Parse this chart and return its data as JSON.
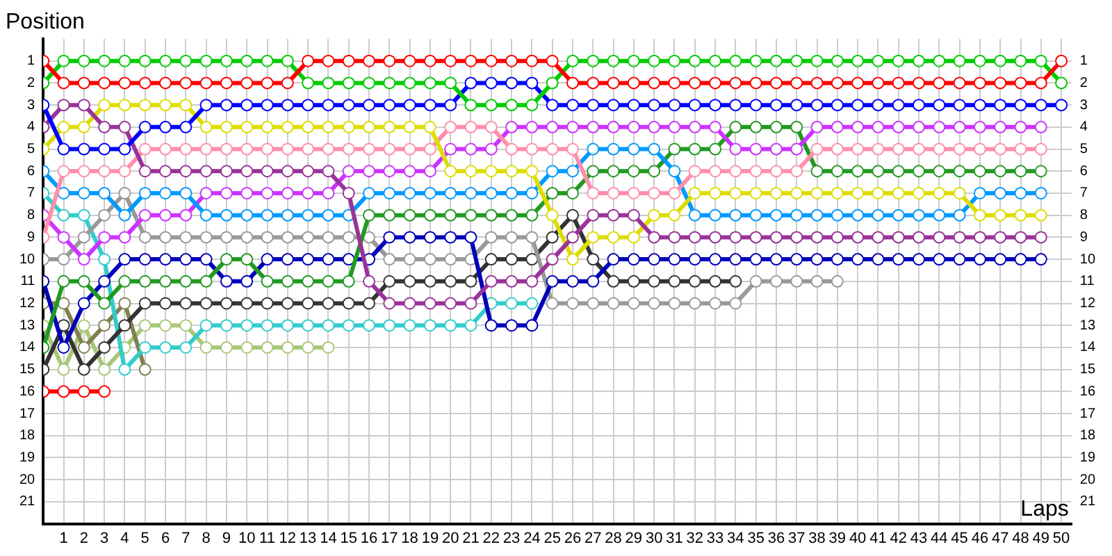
{
  "chart_data": {
    "type": "line",
    "xlabel": "Laps",
    "ylabel": "Position",
    "grid": true,
    "legend": false,
    "marker": "circle",
    "line_style": "solid",
    "x": [
      0,
      1,
      2,
      3,
      4,
      5,
      6,
      7,
      8,
      9,
      10,
      11,
      12,
      13,
      14,
      15,
      16,
      17,
      18,
      19,
      20,
      21,
      22,
      23,
      24,
      25,
      26,
      27,
      28,
      29,
      30,
      31,
      32,
      33,
      34,
      35,
      36,
      37,
      38,
      39,
      40,
      41,
      42,
      43,
      44,
      45,
      46,
      47,
      48,
      49,
      50
    ],
    "xlim": [
      0,
      50.5
    ],
    "xticks": [
      1,
      2,
      3,
      4,
      5,
      6,
      7,
      8,
      9,
      10,
      11,
      12,
      13,
      14,
      15,
      16,
      17,
      18,
      19,
      20,
      21,
      22,
      23,
      24,
      25,
      26,
      27,
      28,
      29,
      30,
      31,
      32,
      33,
      34,
      35,
      36,
      37,
      38,
      39,
      40,
      41,
      42,
      43,
      44,
      45,
      46,
      47,
      48,
      49,
      50
    ],
    "ylim": [
      22,
      0
    ],
    "yticks": [
      1,
      2,
      3,
      4,
      5,
      6,
      7,
      8,
      9,
      10,
      11,
      12,
      13,
      14,
      15,
      16,
      17,
      18,
      19,
      20,
      21
    ],
    "y2lim": [
      22,
      0
    ],
    "y2ticks": [
      1,
      2,
      3,
      4,
      5,
      6,
      7,
      8,
      9,
      10,
      11,
      12,
      13,
      14,
      15,
      16,
      17,
      18,
      19,
      20,
      21
    ],
    "series": [
      {
        "color": "#ff0000",
        "values": [
          1,
          2,
          2,
          2,
          2,
          2,
          2,
          2,
          2,
          2,
          2,
          2,
          2,
          1,
          1,
          1,
          1,
          1,
          1,
          1,
          1,
          1,
          1,
          1,
          1,
          1,
          2,
          2,
          2,
          2,
          2,
          2,
          2,
          2,
          2,
          2,
          2,
          2,
          2,
          2,
          2,
          2,
          2,
          2,
          2,
          2,
          2,
          2,
          2,
          2,
          1
        ]
      },
      {
        "color": "#00cc00",
        "values": [
          2,
          1,
          1,
          1,
          1,
          1,
          1,
          1,
          1,
          1,
          1,
          1,
          1,
          2,
          2,
          2,
          2,
          2,
          2,
          2,
          2,
          3,
          3,
          3,
          3,
          2,
          1,
          1,
          1,
          1,
          1,
          1,
          1,
          1,
          1,
          1,
          1,
          1,
          1,
          1,
          1,
          1,
          1,
          1,
          1,
          1,
          1,
          1,
          1,
          1,
          2
        ]
      },
      {
        "color": "#0000ff",
        "values": [
          3,
          5,
          5,
          5,
          5,
          4,
          4,
          4,
          3,
          3,
          3,
          3,
          3,
          3,
          3,
          3,
          3,
          3,
          3,
          3,
          3,
          2,
          2,
          2,
          2,
          3,
          3,
          3,
          3,
          3,
          3,
          3,
          3,
          3,
          3,
          3,
          3,
          3,
          3,
          3,
          3,
          3,
          3,
          3,
          3,
          3,
          3,
          3,
          3,
          3,
          3
        ]
      },
      {
        "color": "#993399",
        "values": [
          4,
          3,
          3,
          4,
          4,
          6,
          6,
          6,
          6,
          6,
          6,
          6,
          6,
          6,
          6,
          7,
          11,
          12,
          12,
          12,
          12,
          12,
          11,
          11,
          11,
          10,
          9,
          8,
          8,
          8,
          9,
          9,
          9,
          9,
          9,
          9,
          9,
          9,
          9,
          9,
          9,
          9,
          9,
          9,
          9,
          9,
          9,
          9,
          9,
          9,
          null
        ]
      },
      {
        "color": "#dddd00",
        "values": [
          5,
          4,
          4,
          3,
          3,
          3,
          3,
          3,
          4,
          4,
          4,
          4,
          4,
          4,
          4,
          4,
          4,
          4,
          4,
          4,
          6,
          6,
          6,
          6,
          6,
          8,
          10,
          9,
          9,
          9,
          8,
          8,
          7,
          7,
          7,
          7,
          7,
          7,
          7,
          7,
          7,
          7,
          7,
          7,
          7,
          7,
          8,
          8,
          8,
          8,
          null
        ]
      },
      {
        "color": "#ff8fab",
        "values": [
          9,
          6,
          6,
          6,
          6,
          5,
          5,
          5,
          5,
          5,
          5,
          5,
          5,
          5,
          5,
          5,
          5,
          5,
          5,
          5,
          4,
          4,
          4,
          5,
          5,
          5,
          5,
          7,
          7,
          7,
          7,
          7,
          6,
          6,
          6,
          6,
          6,
          6,
          5,
          5,
          5,
          5,
          5,
          5,
          5,
          5,
          5,
          5,
          5,
          5,
          null
        ]
      },
      {
        "color": "#0099ff",
        "values": [
          6,
          7,
          7,
          7,
          8,
          7,
          7,
          7,
          8,
          8,
          8,
          8,
          8,
          8,
          8,
          8,
          7,
          7,
          7,
          7,
          7,
          7,
          7,
          7,
          7,
          6,
          6,
          5,
          5,
          5,
          5,
          6,
          8,
          8,
          8,
          8,
          8,
          8,
          8,
          8,
          8,
          8,
          8,
          8,
          8,
          8,
          7,
          7,
          7,
          7,
          null
        ]
      },
      {
        "color": "#cc33ff",
        "values": [
          8,
          9,
          10,
          9,
          9,
          8,
          8,
          8,
          7,
          7,
          7,
          7,
          7,
          7,
          7,
          6,
          6,
          6,
          6,
          6,
          5,
          5,
          5,
          4,
          4,
          4,
          4,
          4,
          4,
          4,
          4,
          4,
          4,
          4,
          5,
          5,
          5,
          5,
          4,
          4,
          4,
          4,
          4,
          4,
          4,
          4,
          4,
          4,
          4,
          4,
          null
        ]
      },
      {
        "color": "#229922",
        "values": [
          14,
          11,
          11,
          12,
          11,
          11,
          11,
          11,
          11,
          10,
          10,
          11,
          11,
          11,
          11,
          11,
          8,
          8,
          8,
          8,
          8,
          8,
          8,
          8,
          8,
          7,
          7,
          6,
          6,
          6,
          6,
          5,
          5,
          5,
          4,
          4,
          4,
          4,
          6,
          6,
          6,
          6,
          6,
          6,
          6,
          6,
          6,
          6,
          6,
          6,
          null
        ]
      },
      {
        "color": "#0000bb",
        "values": [
          11,
          14,
          12,
          11,
          10,
          10,
          10,
          10,
          10,
          11,
          11,
          10,
          10,
          10,
          10,
          10,
          10,
          9,
          9,
          9,
          9,
          9,
          13,
          13,
          13,
          11,
          11,
          11,
          10,
          10,
          10,
          10,
          10,
          10,
          10,
          10,
          10,
          10,
          10,
          10,
          10,
          10,
          10,
          10,
          10,
          10,
          10,
          10,
          10,
          10,
          null
        ]
      },
      {
        "color": "#999999",
        "values": [
          10,
          10,
          9,
          8,
          7,
          9,
          9,
          9,
          9,
          9,
          9,
          9,
          9,
          9,
          9,
          9,
          9,
          10,
          10,
          10,
          10,
          10,
          9,
          9,
          9,
          12,
          12,
          12,
          12,
          12,
          12,
          12,
          12,
          12,
          12,
          11,
          11,
          11,
          11,
          11,
          null,
          null,
          null,
          null,
          null,
          null,
          null,
          null,
          null,
          null,
          null
        ]
      },
      {
        "color": "#333333",
        "values": [
          15,
          13,
          15,
          14,
          13,
          12,
          12,
          12,
          12,
          12,
          12,
          12,
          12,
          12,
          12,
          12,
          12,
          11,
          11,
          11,
          11,
          11,
          10,
          10,
          10,
          9,
          8,
          10,
          11,
          11,
          11,
          11,
          11,
          11,
          11,
          null,
          null,
          null,
          null,
          null,
          null,
          null,
          null,
          null,
          null,
          null,
          null,
          null,
          null,
          null,
          null
        ]
      },
      {
        "color": "#33cccc",
        "values": [
          7,
          8,
          8,
          10,
          15,
          14,
          14,
          14,
          13,
          13,
          13,
          13,
          13,
          13,
          13,
          13,
          13,
          13,
          13,
          13,
          13,
          13,
          12,
          12,
          12,
          null,
          null,
          null,
          null,
          null,
          null,
          null,
          null,
          null,
          null,
          null,
          null,
          null,
          null,
          null,
          null,
          null,
          null,
          null,
          null,
          null,
          null,
          null,
          null,
          null,
          null
        ]
      },
      {
        "color": "#808050",
        "values": [
          12,
          12,
          14,
          13,
          12,
          15,
          null,
          null,
          null,
          null,
          null,
          null,
          null,
          null,
          null,
          null,
          null,
          null,
          null,
          null,
          null,
          null,
          null,
          null,
          null,
          null,
          null,
          null,
          null,
          null,
          null,
          null,
          null,
          null,
          null,
          null,
          null,
          null,
          null,
          null,
          null,
          null,
          null,
          null,
          null,
          null,
          null,
          null,
          null,
          null,
          null
        ]
      },
      {
        "color": "#a8c878",
        "values": [
          13,
          15,
          13,
          15,
          14,
          13,
          13,
          13,
          14,
          14,
          14,
          14,
          14,
          14,
          14,
          null,
          null,
          null,
          null,
          null,
          null,
          null,
          null,
          null,
          null,
          null,
          null,
          null,
          null,
          null,
          null,
          null,
          null,
          null,
          null,
          null,
          null,
          null,
          null,
          null,
          null,
          null,
          null,
          null,
          null,
          null,
          null,
          null,
          null,
          null,
          null
        ]
      },
      {
        "color": "#ff0000",
        "values": [
          16,
          16,
          16,
          16,
          null,
          null,
          null,
          null,
          null,
          null,
          null,
          null,
          null,
          null,
          null,
          null,
          null,
          null,
          null,
          null,
          null,
          null,
          null,
          null,
          null,
          null,
          null,
          null,
          null,
          null,
          null,
          null,
          null,
          null,
          null,
          null,
          null,
          null,
          null,
          null,
          null,
          null,
          null,
          null,
          null,
          null,
          null,
          null,
          null,
          null,
          null
        ]
      }
    ]
  }
}
